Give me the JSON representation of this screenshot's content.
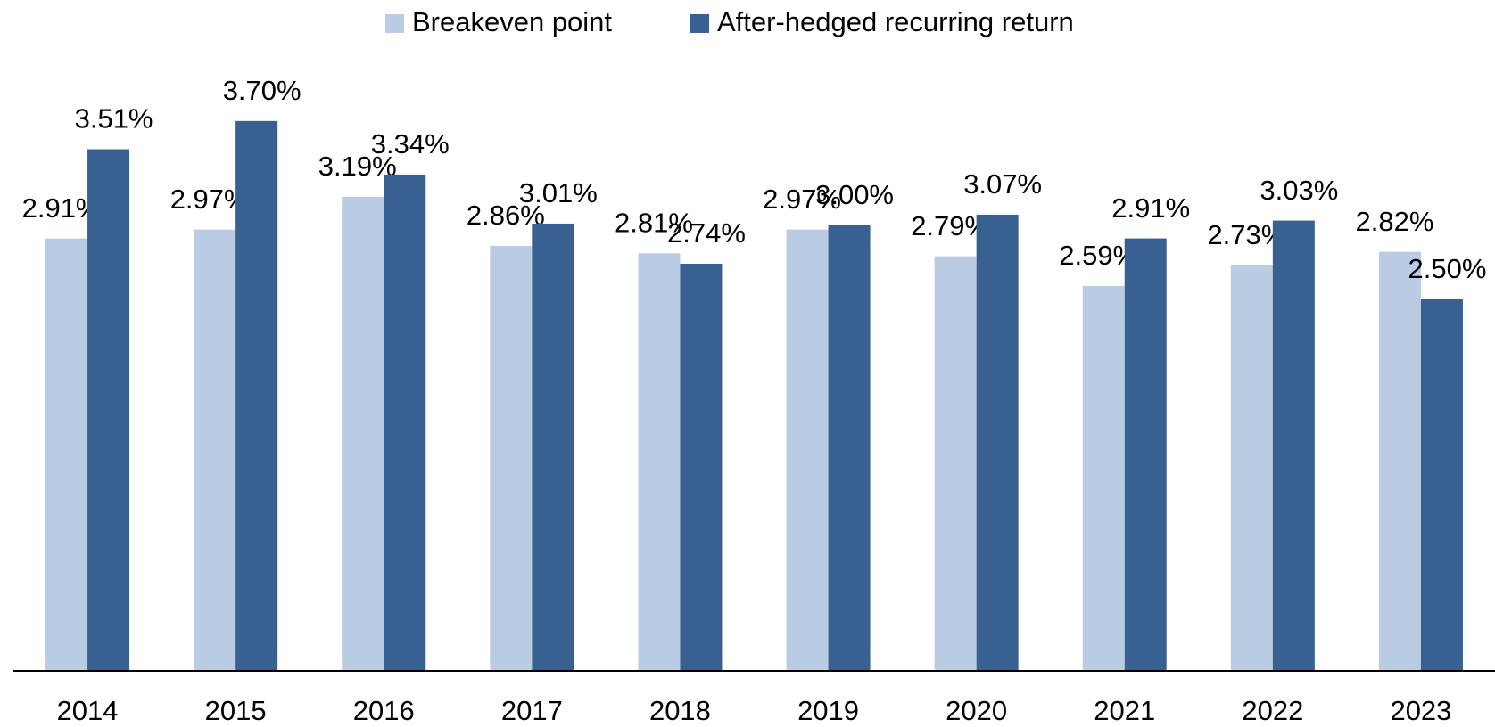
{
  "chart_data": {
    "type": "bar",
    "categories": [
      "2014",
      "2015",
      "2016",
      "2017",
      "2018",
      "2019",
      "2020",
      "2021",
      "2022",
      "2023"
    ],
    "series": [
      {
        "name": "Breakeven point",
        "color": "#b9cce4",
        "values": [
          2.91,
          2.97,
          3.19,
          2.86,
          2.81,
          2.97,
          2.79,
          2.59,
          2.73,
          2.82
        ],
        "value_labels": [
          "2.91%",
          "2.97%",
          "3.19%",
          "2.86%",
          "2.81%",
          "2.97%",
          "2.79%",
          "2.59%",
          "2.73%",
          "2.82%"
        ]
      },
      {
        "name": "After-hedged recurring return",
        "color": "#386192",
        "values": [
          3.51,
          3.7,
          3.34,
          3.01,
          2.74,
          3.0,
          3.07,
          2.91,
          3.03,
          2.5
        ],
        "value_labels": [
          "3.51%",
          "3.70%",
          "3.34%",
          "3.01%",
          "2.74%",
          "3.00%",
          "3.07%",
          "2.91%",
          "3.03%",
          "2.50%"
        ]
      }
    ],
    "ylim": [
      0,
      4.5
    ],
    "legend": "top"
  }
}
